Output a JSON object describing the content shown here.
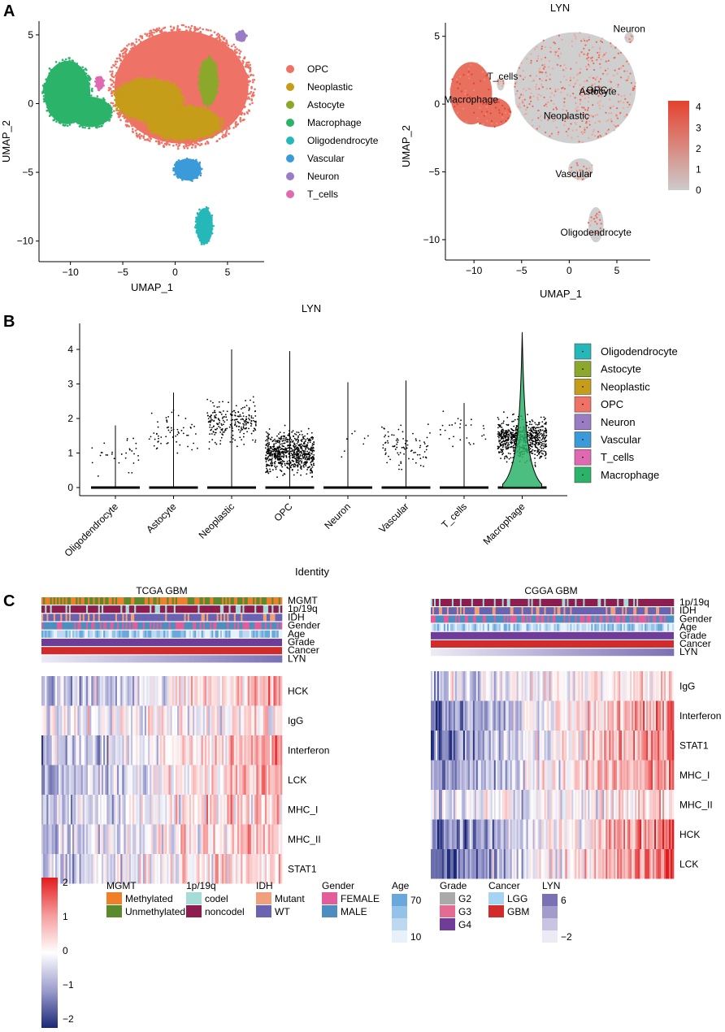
{
  "panels": {
    "A": "A",
    "B": "B",
    "C": "C"
  },
  "colors": {
    "OPC": "#ee7366",
    "Neoplastic": "#c59d19",
    "Astocyte": "#8ba82a",
    "Macrophage": "#2bb36a",
    "Oligodendrocyte": "#26b8b8",
    "Vascular": "#3a9bd8",
    "Neuron": "#9a7cc4",
    "T_cells": "#e06ab2",
    "grey": "#cccccc",
    "expr_high": "#e5412f"
  },
  "chart_data": [
    {
      "id": "umap-celltype",
      "type": "scatter",
      "title": "",
      "xlabel": "UMAP_1",
      "ylabel": "UMAP_2",
      "xlim": [
        -13,
        8.5
      ],
      "ylim": [
        -11.5,
        6
      ],
      "xticks": [
        -10,
        -5,
        0,
        5
      ],
      "yticks": [
        -10,
        -5,
        0,
        5
      ],
      "legend": [
        "OPC",
        "Neoplastic",
        "Astocyte",
        "Macrophage",
        "Oligodendrocyte",
        "Vascular",
        "Neuron",
        "T_cells"
      ],
      "clusters": [
        {
          "label": "Macrophage",
          "cx": -10.3,
          "cy": 0.8,
          "rx": 2.2,
          "ry": 2.3
        },
        {
          "label": "Macrophage",
          "cx": -8.1,
          "cy": -0.6,
          "rx": 2.0,
          "ry": 1.1
        },
        {
          "label": "OPC",
          "cx": 0.6,
          "cy": 1.2,
          "rx": 6.4,
          "ry": 4.1
        },
        {
          "label": "Neoplastic",
          "cx": -2.5,
          "cy": 0.3,
          "rx": 3.2,
          "ry": 1.5
        },
        {
          "label": "Neoplastic",
          "cx": 0.8,
          "cy": -1.4,
          "rx": 3.5,
          "ry": 1.2
        },
        {
          "label": "Astocyte",
          "cx": 3.2,
          "cy": 1.6,
          "rx": 0.9,
          "ry": 1.7
        },
        {
          "label": "Vascular",
          "cx": 1.2,
          "cy": -4.8,
          "rx": 1.3,
          "ry": 0.8
        },
        {
          "label": "Oligodendrocyte",
          "cx": 2.8,
          "cy": -8.9,
          "rx": 0.8,
          "ry": 1.3
        },
        {
          "label": "Neuron",
          "cx": 6.3,
          "cy": 4.9,
          "rx": 0.5,
          "ry": 0.4
        },
        {
          "label": "T_cells",
          "cx": -7.2,
          "cy": 1.5,
          "rx": 0.4,
          "ry": 0.5
        }
      ]
    },
    {
      "id": "umap-lyn",
      "type": "scatter",
      "title": "LYN",
      "xlabel": "UMAP_1",
      "ylabel": "UMAP_2",
      "xlim": [
        -13,
        8.5
      ],
      "ylim": [
        -11.5,
        6
      ],
      "xticks": [
        -10,
        -5,
        0,
        5
      ],
      "yticks": [
        -10,
        -5,
        0,
        5
      ],
      "colorbar": {
        "min": 0,
        "max": 4.3,
        "ticks": [
          0,
          1,
          2,
          3,
          4
        ]
      },
      "annotations": [
        {
          "text": "Neuron",
          "x": 6.3,
          "y": 5.3
        },
        {
          "text": "T_cells",
          "x": -7.0,
          "y": 1.8
        },
        {
          "text": "Macrophage",
          "x": -10.3,
          "y": 0.1
        },
        {
          "text": "OPC",
          "x": 2.9,
          "y": 0.8
        },
        {
          "text": "Astocyte",
          "x": 3.0,
          "y": 0.7
        },
        {
          "text": "Neoplastic",
          "x": -0.3,
          "y": -1.1
        },
        {
          "text": "Vascular",
          "x": 0.5,
          "y": -5.4
        },
        {
          "text": "Oligodendrocyte",
          "x": 2.8,
          "y": -9.7
        }
      ]
    },
    {
      "id": "violin-lyn",
      "type": "violin",
      "title": "LYN",
      "xlabel": "Identity",
      "ylabel": "",
      "ylim": [
        -0.1,
        4.6
      ],
      "yticks": [
        0,
        1,
        2,
        3,
        4
      ],
      "categories": [
        "Oligodendrocyte",
        "Astocyte",
        "Neoplastic",
        "OPC",
        "Neuron",
        "Vascular",
        "T_cells",
        "Macrophage"
      ],
      "legend": [
        "Oligodendrocyte",
        "Astocyte",
        "Neoplastic",
        "OPC",
        "Neuron",
        "Vascular",
        "T_cells",
        "Macrophage"
      ],
      "max": [
        1.8,
        2.75,
        4.0,
        3.95,
        3.05,
        3.1,
        2.45,
        4.5
      ],
      "nonzero_points": [
        30,
        60,
        230,
        900,
        8,
        85,
        28,
        2200
      ],
      "mean_nonzero": [
        1.0,
        1.6,
        1.9,
        1.0,
        1.5,
        1.2,
        1.5,
        1.4
      ]
    },
    {
      "id": "tcga-heatmap",
      "type": "heatmap",
      "title": "TCGA GBM",
      "annotation_tracks": [
        "MGMT",
        "1p/19q",
        "IDH",
        "Gender",
        "Age",
        "Grade",
        "Cancer",
        "LYN"
      ],
      "rows": [
        "HCK",
        "IgG",
        "Interferon",
        "LCK",
        "MHC_I",
        "MHC_II",
        "STAT1"
      ],
      "trend": [
        0.9,
        0.3,
        0.8,
        1.0,
        0.8,
        0.7,
        0.6
      ]
    },
    {
      "id": "cgga-heatmap",
      "type": "heatmap",
      "title": "CGGA GBM",
      "annotation_tracks": [
        "1p/19q",
        "IDH",
        "Gender",
        "Age",
        "Grade",
        "Cancer",
        "LYN"
      ],
      "rows": [
        "IgG",
        "Interferon",
        "STAT1",
        "MHC_I",
        "MHC_II",
        "HCK",
        "LCK"
      ],
      "trend": [
        0.6,
        1.3,
        1.4,
        1.2,
        0.5,
        1.5,
        1.6
      ]
    }
  ],
  "heat_scale": {
    "ticks": [
      "2",
      "1",
      "0",
      "−1",
      "−2"
    ]
  },
  "legends": [
    {
      "title": "MGMT",
      "items": [
        {
          "label": "Methylated",
          "color": "#f07f2a"
        },
        {
          "label": "Unmethylated",
          "color": "#5a8a2c"
        }
      ]
    },
    {
      "title": "1p/19q",
      "items": [
        {
          "label": "codel",
          "color": "#a6dcd8"
        },
        {
          "label": "noncodel",
          "color": "#8c1d4e"
        }
      ]
    },
    {
      "title": "IDH",
      "items": [
        {
          "label": "Mutant",
          "color": "#f0a07c"
        },
        {
          "label": "WT",
          "color": "#6a63b0"
        }
      ]
    },
    {
      "title": "Gender",
      "items": [
        {
          "label": "FEMALE",
          "color": "#e25d9a"
        },
        {
          "label": "MALE",
          "color": "#4d8ec0"
        }
      ]
    },
    {
      "title": "Grade",
      "items": [
        {
          "label": "G2",
          "color": "#a9a9a9"
        },
        {
          "label": "G3",
          "color": "#e56b93"
        },
        {
          "label": "G4",
          "color": "#6f3c97"
        }
      ]
    },
    {
      "title": "Cancer",
      "items": [
        {
          "label": "LGG",
          "color": "#a4d4f2"
        },
        {
          "label": "GBM",
          "color": "#d22b2b"
        }
      ]
    }
  ],
  "gradient_legends": [
    {
      "title": "Age",
      "top": "70",
      "bottom": "10",
      "colors": [
        "#6aa8dc",
        "#95c2e8",
        "#bcd9f1",
        "#e6f1fa"
      ]
    },
    {
      "title": "LYN",
      "top": "6",
      "bottom": "−2",
      "colors": [
        "#7a70b4",
        "#a39ccb",
        "#c8c4e1",
        "#ecebf5"
      ]
    }
  ]
}
